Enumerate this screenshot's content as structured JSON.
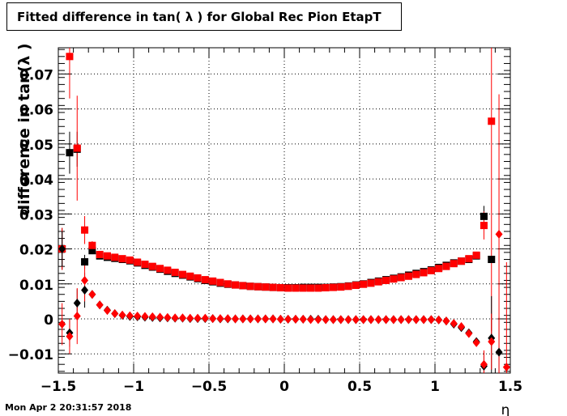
{
  "chart_data": {
    "type": "scatter",
    "title": "Fitted difference in tan( λ ) for Global Rec Pion EtapT",
    "xlabel": "η",
    "ylabel": "difference in tan(λ )",
    "xlim": [
      -1.5,
      1.5
    ],
    "ylim": [
      -0.0155,
      0.0775
    ],
    "x_ticks": [
      "−1.5",
      "−1",
      "−0.5",
      "0",
      "0.5",
      "1",
      "1.5"
    ],
    "y_ticks": [
      "−0.01",
      "0",
      "0.01",
      "0.02",
      "0.03",
      "0.04",
      "0.05",
      "0.06",
      "0.07"
    ],
    "grid": true,
    "series": [
      {
        "marker": "square",
        "color": "#000000",
        "x": [
          -1.475,
          -1.425,
          -1.375,
          -1.325,
          -1.275,
          -1.225,
          -1.175,
          -1.125,
          -1.075,
          -1.025,
          -0.975,
          -0.925,
          -0.875,
          -0.825,
          -0.775,
          -0.725,
          -0.675,
          -0.625,
          -0.575,
          -0.525,
          -0.475,
          -0.425,
          -0.375,
          -0.325,
          -0.275,
          -0.225,
          -0.175,
          -0.125,
          -0.075,
          -0.025,
          0.025,
          0.075,
          0.125,
          0.175,
          0.225,
          0.275,
          0.325,
          0.375,
          0.425,
          0.475,
          0.525,
          0.575,
          0.625,
          0.675,
          0.725,
          0.775,
          0.825,
          0.875,
          0.925,
          0.975,
          1.025,
          1.075,
          1.125,
          1.175,
          1.225,
          1.275,
          1.325,
          1.375
        ],
        "y": [
          0.02,
          0.0475,
          0.0485,
          0.0163,
          0.0195,
          0.018,
          0.0176,
          0.0173,
          0.017,
          0.0166,
          0.016,
          0.0153,
          0.0148,
          0.0142,
          0.0136,
          0.013,
          0.0125,
          0.012,
          0.0115,
          0.011,
          0.0106,
          0.0102,
          0.0099,
          0.0097,
          0.0095,
          0.0093,
          0.0092,
          0.0091,
          0.009,
          0.0089,
          0.0089,
          0.0089,
          0.009,
          0.009,
          0.009,
          0.009,
          0.0091,
          0.0092,
          0.0094,
          0.0097,
          0.01,
          0.0104,
          0.0108,
          0.0112,
          0.0116,
          0.012,
          0.0125,
          0.013,
          0.0135,
          0.014,
          0.0147,
          0.0153,
          0.016,
          0.0165,
          0.017,
          0.018,
          0.0293,
          0.017
        ],
        "err": [
          0.006,
          0.006,
          0.005,
          0.002,
          0.001,
          0.0008,
          0,
          0,
          0,
          0,
          0,
          0,
          0,
          0,
          0,
          0,
          0,
          0,
          0,
          0,
          0,
          0,
          0,
          0,
          0,
          0,
          0,
          0,
          0,
          0,
          0,
          0,
          0,
          0,
          0,
          0,
          0,
          0,
          0,
          0,
          0,
          0,
          0,
          0,
          0,
          0,
          0,
          0,
          0,
          0,
          0,
          0,
          0,
          0,
          0,
          0.001,
          0.003,
          0
        ]
      },
      {
        "marker": "square",
        "color": "#ff0000",
        "x": [
          -1.475,
          -1.425,
          -1.375,
          -1.325,
          -1.275,
          -1.225,
          -1.175,
          -1.125,
          -1.075,
          -1.025,
          -0.975,
          -0.925,
          -0.875,
          -0.825,
          -0.775,
          -0.725,
          -0.675,
          -0.625,
          -0.575,
          -0.525,
          -0.475,
          -0.425,
          -0.375,
          -0.325,
          -0.275,
          -0.225,
          -0.175,
          -0.125,
          -0.075,
          -0.025,
          0.025,
          0.075,
          0.125,
          0.175,
          0.225,
          0.275,
          0.325,
          0.375,
          0.425,
          0.475,
          0.525,
          0.575,
          0.625,
          0.675,
          0.725,
          0.775,
          0.825,
          0.875,
          0.925,
          0.975,
          1.025,
          1.075,
          1.125,
          1.175,
          1.225,
          1.275,
          1.325,
          1.375
        ],
        "y": [
          0.02,
          0.075,
          0.0488,
          0.0254,
          0.021,
          0.0184,
          0.018,
          0.0176,
          0.0172,
          0.0168,
          0.0162,
          0.0156,
          0.015,
          0.0144,
          0.0139,
          0.0133,
          0.0127,
          0.0122,
          0.0117,
          0.0112,
          0.0108,
          0.0104,
          0.01,
          0.0097,
          0.0095,
          0.0093,
          0.0092,
          0.0091,
          0.009,
          0.0089,
          0.0088,
          0.0088,
          0.0088,
          0.0088,
          0.0088,
          0.0089,
          0.009,
          0.0091,
          0.0093,
          0.0096,
          0.0099,
          0.0102,
          0.0106,
          0.011,
          0.0114,
          0.0118,
          0.0122,
          0.0127,
          0.0132,
          0.0138,
          0.0144,
          0.015,
          0.0158,
          0.0165,
          0.0172,
          0.0182,
          0.0267,
          0.0565
        ],
        "err": [
          0.006,
          0.012,
          0.015,
          0.004,
          0.0012,
          0.001,
          0,
          0,
          0,
          0,
          0,
          0,
          0,
          0,
          0,
          0,
          0,
          0,
          0,
          0,
          0,
          0,
          0,
          0,
          0,
          0,
          0,
          0,
          0,
          0,
          0,
          0,
          0,
          0,
          0,
          0,
          0,
          0,
          0,
          0,
          0,
          0,
          0,
          0,
          0,
          0,
          0,
          0,
          0,
          0,
          0,
          0,
          0,
          0,
          0,
          0.001,
          0.004,
          0.06
        ]
      },
      {
        "marker": "diamond",
        "color": "#000000",
        "x": [
          -1.475,
          -1.425,
          -1.375,
          -1.325,
          -1.275,
          -1.225,
          -1.175,
          -1.125,
          -1.075,
          -1.025,
          -0.975,
          -0.925,
          -0.875,
          -0.825,
          -0.775,
          -0.725,
          -0.675,
          -0.625,
          -0.575,
          -0.525,
          -0.475,
          -0.425,
          -0.375,
          -0.325,
          -0.275,
          -0.225,
          -0.175,
          -0.125,
          -0.075,
          -0.025,
          0.025,
          0.075,
          0.125,
          0.175,
          0.225,
          0.275,
          0.325,
          0.375,
          0.425,
          0.475,
          0.525,
          0.575,
          0.625,
          0.675,
          0.725,
          0.775,
          0.825,
          0.875,
          0.925,
          0.975,
          1.025,
          1.075,
          1.125,
          1.175,
          1.225,
          1.275,
          1.325,
          1.375,
          1.425
        ],
        "y": [
          0.02,
          -0.004,
          0.0045,
          0.0082,
          0.007,
          0.004,
          0.0025,
          0.0015,
          0.001,
          0.0007,
          0.0006,
          0.0005,
          0.0004,
          0.0003,
          0.0003,
          0.0002,
          0.0002,
          0.0001,
          0.0001,
          0.0001,
          0.0001,
          0.0,
          0.0,
          0.0,
          0.0,
          0.0,
          0.0,
          0.0,
          0.0,
          -0.0001,
          -0.0001,
          -0.0001,
          -0.0001,
          -0.0001,
          -0.0001,
          -0.0002,
          -0.0002,
          -0.0002,
          -0.0002,
          -0.0002,
          -0.0002,
          -0.0002,
          -0.0002,
          -0.0002,
          -0.0002,
          -0.0002,
          -0.0002,
          -0.0002,
          -0.0002,
          -0.0002,
          -0.0003,
          -0.0006,
          -0.0015,
          -0.0025,
          -0.004,
          -0.0065,
          -0.0135,
          -0.0055,
          -0.0095
        ],
        "err": [
          0.005,
          0.004,
          0.004,
          0.005,
          0.001,
          0.0008,
          0,
          0,
          0,
          0,
          0,
          0,
          0,
          0,
          0,
          0,
          0,
          0,
          0,
          0,
          0,
          0,
          0,
          0,
          0,
          0,
          0,
          0,
          0,
          0,
          0,
          0,
          0,
          0,
          0,
          0,
          0,
          0,
          0,
          0,
          0,
          0,
          0,
          0,
          0,
          0,
          0,
          0,
          0,
          0,
          0,
          0,
          0,
          0,
          0,
          0.0008,
          0.004,
          0.012,
          0.01
        ]
      },
      {
        "marker": "diamond",
        "color": "#ff0000",
        "x": [
          -1.475,
          -1.425,
          -1.375,
          -1.325,
          -1.275,
          -1.225,
          -1.175,
          -1.125,
          -1.075,
          -1.025,
          -0.975,
          -0.925,
          -0.875,
          -0.825,
          -0.775,
          -0.725,
          -0.675,
          -0.625,
          -0.575,
          -0.525,
          -0.475,
          -0.425,
          -0.375,
          -0.325,
          -0.275,
          -0.225,
          -0.175,
          -0.125,
          -0.075,
          -0.025,
          0.025,
          0.075,
          0.125,
          0.175,
          0.225,
          0.275,
          0.325,
          0.375,
          0.425,
          0.475,
          0.525,
          0.575,
          0.625,
          0.675,
          0.725,
          0.775,
          0.825,
          0.875,
          0.925,
          0.975,
          1.025,
          1.075,
          1.125,
          1.175,
          1.225,
          1.275,
          1.325,
          1.375,
          1.425,
          1.475
        ],
        "y": [
          -0.0015,
          -0.005,
          0.0008,
          0.011,
          0.007,
          0.004,
          0.0024,
          0.0015,
          0.0011,
          0.0009,
          0.0008,
          0.0007,
          0.0006,
          0.0005,
          0.0004,
          0.0003,
          0.0003,
          0.0002,
          0.0002,
          0.0002,
          0.0001,
          0.0001,
          0.0001,
          0.0,
          0.0,
          0.0,
          0.0,
          0.0,
          0.0,
          -0.0001,
          -0.0001,
          -0.0001,
          -0.0001,
          -0.0002,
          -0.0002,
          -0.0002,
          -0.0002,
          -0.0002,
          -0.0002,
          -0.0002,
          -0.0002,
          -0.0002,
          -0.0002,
          -0.0002,
          -0.0002,
          -0.0002,
          -0.0002,
          -0.0002,
          -0.0002,
          -0.0002,
          -0.0003,
          -0.0006,
          -0.0013,
          -0.0022,
          -0.0042,
          -0.0068,
          -0.013,
          -0.0065,
          0.0242,
          -0.0138
        ],
        "err": [
          0.006,
          0.005,
          0.008,
          0.006,
          0.001,
          0.0008,
          0,
          0,
          0,
          0,
          0,
          0,
          0,
          0,
          0,
          0,
          0,
          0,
          0,
          0,
          0,
          0,
          0,
          0,
          0,
          0,
          0,
          0,
          0,
          0,
          0,
          0,
          0,
          0,
          0,
          0,
          0,
          0,
          0,
          0,
          0,
          0,
          0,
          0,
          0,
          0,
          0,
          0,
          0,
          0,
          0,
          0,
          0,
          0,
          0,
          0.0008,
          0.004,
          0.008,
          0.04,
          0.03
        ]
      }
    ]
  },
  "footer": {
    "timestamp": "Mon Apr  2 20:31:57 2018"
  }
}
